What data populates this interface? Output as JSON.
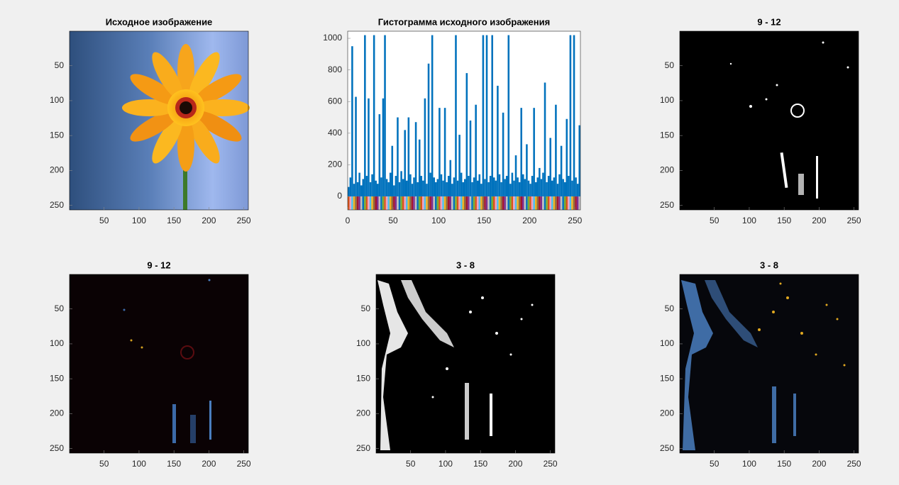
{
  "chart_data": [
    {
      "type": "image",
      "title": "Исходное изображение",
      "xlim": [
        0.5,
        256.5
      ],
      "ylim": [
        256.5,
        0.5
      ],
      "xticks": [
        50,
        100,
        150,
        200,
        250
      ],
      "yticks": [
        50,
        100,
        150,
        200,
        250
      ]
    },
    {
      "type": "histogram",
      "title": "Гистограмма исходного изображения",
      "color": "#0072bd",
      "bins": [
        0,
        2,
        4,
        6,
        8,
        10,
        12,
        14,
        16,
        18,
        20,
        22,
        24,
        26,
        28,
        30,
        32,
        34,
        36,
        38,
        40,
        42,
        44,
        46,
        48,
        50,
        52,
        54,
        56,
        58,
        60,
        62,
        64,
        66,
        68,
        70,
        72,
        74,
        76,
        78,
        80,
        82,
        84,
        86,
        88,
        90,
        92,
        94,
        96,
        98,
        100,
        102,
        104,
        106,
        108,
        110,
        112,
        114,
        116,
        118,
        120,
        122,
        124,
        126,
        128,
        130,
        132,
        134,
        136,
        138,
        140,
        142,
        144,
        146,
        148,
        150,
        152,
        154,
        156,
        158,
        160,
        162,
        164,
        166,
        168,
        170,
        172,
        174,
        176,
        178,
        180,
        182,
        184,
        186,
        188,
        190,
        192,
        194,
        196,
        198,
        200,
        202,
        204,
        206,
        208,
        210,
        212,
        214,
        216,
        218,
        220,
        222,
        224,
        226,
        228,
        230,
        232,
        234,
        236,
        238,
        240,
        242,
        244,
        246,
        248,
        250,
        252,
        254,
        256
      ],
      "values": [
        60,
        120,
        950,
        80,
        630,
        90,
        150,
        70,
        110,
        1020,
        130,
        620,
        90,
        140,
        1020,
        100,
        80,
        520,
        120,
        620,
        1020,
        110,
        90,
        150,
        320,
        70,
        130,
        500,
        90,
        160,
        110,
        420,
        100,
        500,
        140,
        80,
        120,
        470,
        90,
        360,
        130,
        100,
        620,
        80,
        840,
        150,
        1020,
        120,
        90,
        110,
        560,
        140,
        100,
        560,
        90,
        130,
        230,
        80,
        120,
        1020,
        100,
        390,
        150,
        90,
        110,
        780,
        130,
        480,
        90,
        120,
        580,
        100,
        140,
        80,
        1020,
        110,
        1020,
        90,
        130,
        1020,
        120,
        100,
        700,
        140,
        90,
        530,
        110,
        130,
        1020,
        80,
        150,
        100,
        260,
        120,
        90,
        560,
        140,
        110,
        330,
        100,
        80,
        130,
        560,
        90,
        120,
        180,
        110,
        150,
        720,
        90,
        130,
        370,
        100,
        120,
        580,
        80,
        140,
        320,
        110,
        90,
        490,
        130,
        1020,
        100,
        1020,
        120,
        80,
        450
      ],
      "xlim": [
        0,
        256
      ],
      "ylim": [
        -85,
        1045
      ],
      "xticks": [
        0,
        50,
        100,
        150,
        200,
        250
      ],
      "yticks": [
        0,
        200,
        400,
        600,
        800,
        1000
      ]
    },
    {
      "type": "image",
      "title": "9 - 12",
      "xlim": [
        0.5,
        256.5
      ],
      "ylim": [
        256.5,
        0.5
      ],
      "xticks": [
        50,
        100,
        150,
        200,
        250
      ],
      "yticks": [
        50,
        100,
        150,
        200,
        250
      ]
    },
    {
      "type": "image",
      "title": "9 - 12",
      "xlim": [
        0.5,
        256.5
      ],
      "ylim": [
        256.5,
        0.5
      ],
      "xticks": [
        50,
        100,
        150,
        200,
        250
      ],
      "yticks": [
        50,
        100,
        150,
        200,
        250
      ]
    },
    {
      "type": "image",
      "title": "3 - 8",
      "xlim": [
        0.5,
        256.5
      ],
      "ylim": [
        256.5,
        0.5
      ],
      "xticks": [
        50,
        100,
        150,
        200,
        250
      ],
      "yticks": [
        50,
        100,
        150,
        200,
        250
      ]
    },
    {
      "type": "image",
      "title": "3 - 8",
      "xlim": [
        0.5,
        256.5
      ],
      "ylim": [
        256.5,
        0.5
      ],
      "xticks": [
        50,
        100,
        150,
        200,
        250
      ],
      "yticks": [
        50,
        100,
        150,
        200,
        250
      ]
    }
  ]
}
